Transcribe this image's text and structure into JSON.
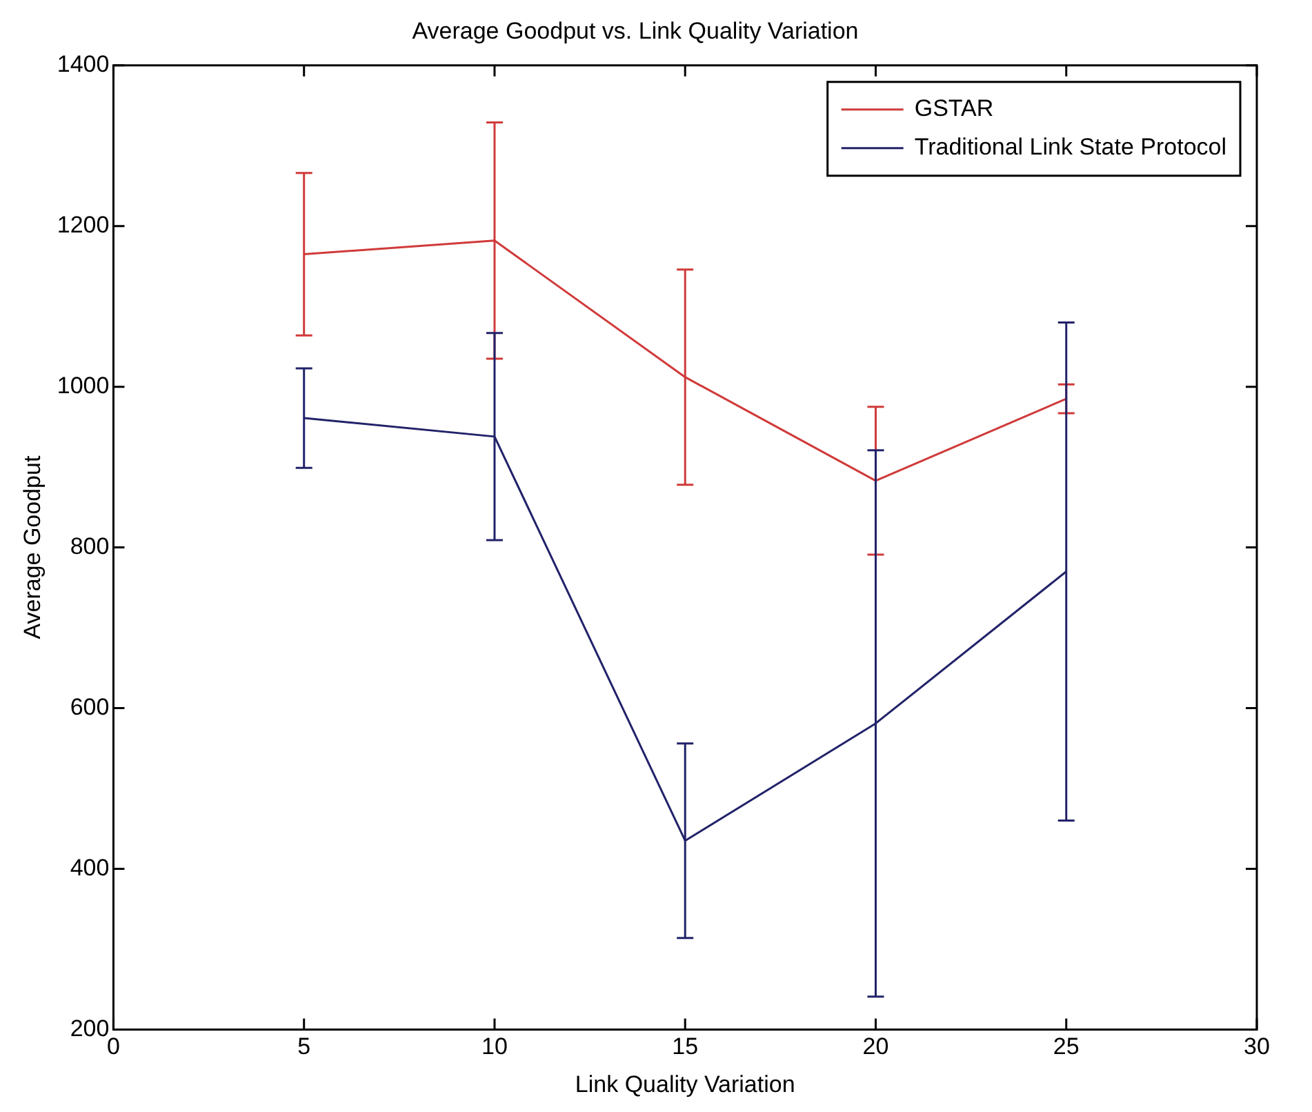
{
  "chart_data": {
    "type": "line",
    "title": "Average Goodput vs. Link Quality Variation",
    "xlabel": "Link Quality Variation",
    "ylabel": "Average Goodput",
    "x": [
      5,
      10,
      15,
      20,
      25
    ],
    "series": [
      {
        "name": "GSTAR",
        "color": "#d03a3a",
        "values": [
          1165,
          1182,
          1012,
          883,
          985
        ],
        "errors": [
          101,
          147,
          134,
          92,
          18
        ]
      },
      {
        "name": "Traditional Link State Protocol",
        "color": "#22226a",
        "values": [
          961,
          938,
          435,
          581,
          770
        ],
        "errors": [
          62,
          129,
          121,
          340,
          310
        ]
      }
    ],
    "xlim": [
      0,
      30
    ],
    "xticks": [
      0,
      5,
      10,
      15,
      20,
      25,
      30
    ],
    "ylim": [
      200,
      1400
    ],
    "yticks": [
      200,
      400,
      600,
      800,
      1000,
      1200,
      1400
    ],
    "grid": false,
    "legend": "top right",
    "marker": "none",
    "line_style": "solid"
  }
}
